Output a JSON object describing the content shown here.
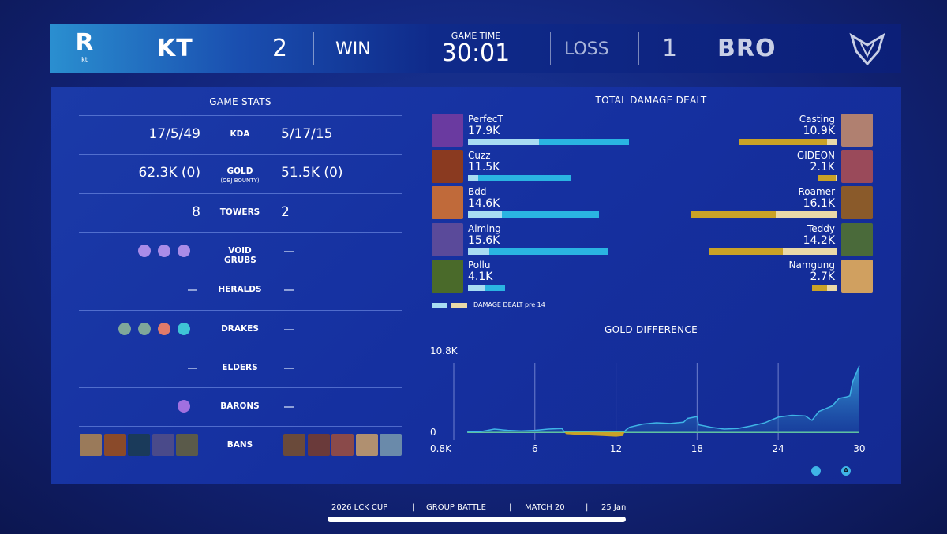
{
  "header": {
    "left_team": "KT",
    "left_logo_text": "kt",
    "left_score": "2",
    "left_result": "WIN",
    "game_time_label": "GAME TIME",
    "game_time": "30:01",
    "right_result": "LOSS",
    "right_score": "1",
    "right_team": "BRO"
  },
  "game_stats": {
    "title": "GAME STATS",
    "rows": [
      {
        "label": "KDA",
        "left": "17/5/49",
        "right": "5/17/15"
      },
      {
        "label": "GOLD",
        "sublabel": "(OBJ BOUNTY)",
        "left": "62.3K (0)",
        "right": "51.5K (0)"
      },
      {
        "label": "TOWERS",
        "left": "8",
        "right": "2"
      },
      {
        "label": "VOID GRUBS",
        "left_icons": [
          "void-grub-icon",
          "void-grub-icon",
          "void-grub-icon"
        ],
        "right": "—"
      },
      {
        "label": "HERALDS",
        "left": "—",
        "right": "—"
      },
      {
        "label": "DRAKES",
        "left_icons": [
          "cloud-drake-icon",
          "cloud-drake-icon",
          "infernal-drake-icon",
          "hextech-drake-icon"
        ],
        "right": "—"
      },
      {
        "label": "ELDERS",
        "left": "—",
        "right": "—"
      },
      {
        "label": "BARONS",
        "left_icons": [
          "baron-icon"
        ],
        "right": "—"
      },
      {
        "label": "BANS"
      }
    ],
    "left_bans": 5,
    "right_bans": 5
  },
  "damage": {
    "title": "TOTAL DAMAGE DEALT",
    "legend": "DAMAGE DEALT pre 14",
    "colors": {
      "left": "#2ab4e2",
      "left_pre14": "#a8dcf2",
      "right": "#c9a227",
      "right_pre14": "#e9d9a8"
    },
    "left": [
      {
        "name": "PerfecT",
        "value": "17.9K",
        "k": 17.9,
        "pre14": 0.44
      },
      {
        "name": "Cuzz",
        "value": "11.5K",
        "k": 11.5,
        "pre14": 0.1
      },
      {
        "name": "Bdd",
        "value": "14.6K",
        "k": 14.6,
        "pre14": 0.26
      },
      {
        "name": "Aiming",
        "value": "15.6K",
        "k": 15.6,
        "pre14": 0.15
      },
      {
        "name": "Pollu",
        "value": "4.1K",
        "k": 4.1,
        "pre14": 0.45
      }
    ],
    "right": [
      {
        "name": "Casting",
        "value": "10.9K",
        "k": 10.9,
        "pre14": 0.1
      },
      {
        "name": "GIDEON",
        "value": "2.1K",
        "k": 2.1,
        "pre14": 0.05
      },
      {
        "name": "Roamer",
        "value": "16.1K",
        "k": 16.1,
        "pre14": 0.42
      },
      {
        "name": "Teddy",
        "value": "14.2K",
        "k": 14.2,
        "pre14": 0.42
      },
      {
        "name": "Namgung",
        "value": "2.7K",
        "k": 2.7,
        "pre14": 0.4
      }
    ]
  },
  "chart_data": {
    "type": "area",
    "title": "GOLD DIFFERENCE",
    "y_top_label": "10.8K",
    "y_zero_label": "0",
    "y_bottom_label": "0.8K",
    "ylim": [
      -0.8,
      10.8
    ],
    "xlim": [
      0,
      30
    ],
    "xticks": [
      "6",
      "12",
      "18",
      "24",
      "30"
    ],
    "grid": true,
    "colors": {
      "positive": "#3fb4e6",
      "negative": "#c9a227"
    },
    "x": [
      1,
      2,
      3,
      4,
      5,
      6,
      7,
      8,
      8.3,
      9,
      10,
      11,
      12,
      12.5,
      12.7,
      13,
      14,
      15,
      16,
      17,
      17.3,
      18,
      18.1,
      19,
      20,
      21,
      22,
      23,
      24,
      25,
      26,
      26.5,
      27,
      28,
      28.5,
      29,
      29.3,
      29.5,
      30
    ],
    "y": [
      0,
      0.1,
      0.5,
      0.3,
      0.2,
      0.3,
      0.5,
      0.6,
      -0.3,
      -0.4,
      -0.5,
      -0.6,
      -0.7,
      -0.6,
      0.3,
      0.8,
      1.3,
      1.5,
      1.4,
      1.6,
      2.2,
      2.5,
      1.2,
      0.8,
      0.5,
      0.6,
      1.0,
      1.5,
      2.4,
      2.7,
      2.6,
      1.9,
      3.3,
      4.2,
      5.4,
      5.6,
      5.8,
      8.0,
      10.6
    ],
    "markers": [
      "baron-icon",
      "atakhan-icon"
    ]
  },
  "footer": {
    "items": [
      "2026 LCK CUP",
      "GROUP BATTLE",
      "MATCH 20",
      "25 Jan"
    ],
    "sep": "|"
  }
}
